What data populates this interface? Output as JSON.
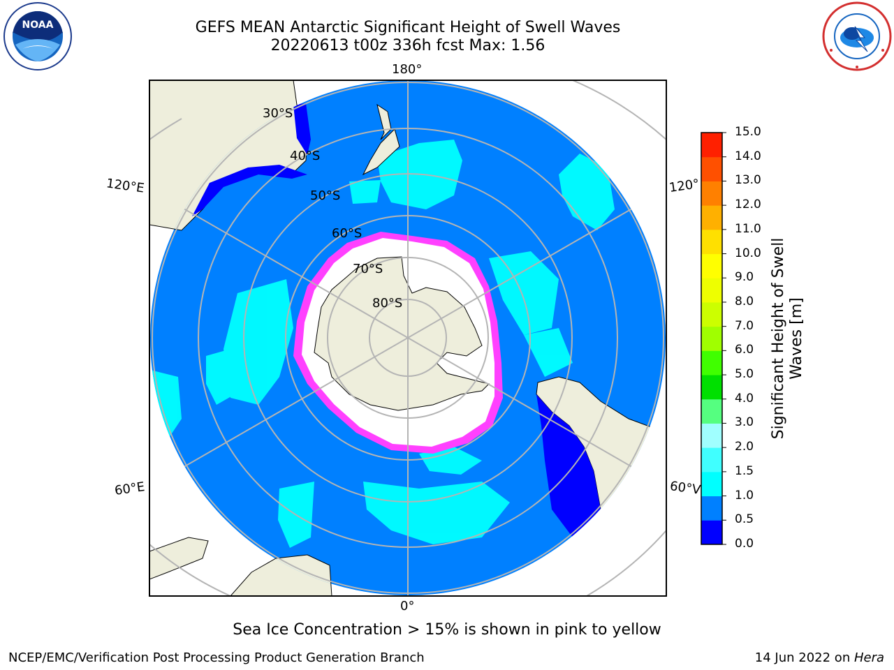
{
  "header": {
    "title_line1": "GEFS MEAN Antarctic Significant Height of Swell Waves",
    "title_line2": "20220613 t00z 336h fcst   Max: 1.56"
  },
  "logos": {
    "noaa": {
      "text": "NOAA",
      "ring_text": "NATIONAL OCEANIC AND ATMOSPHERIC ADMINISTRATION · U.S. DEPARTMENT OF COMMERCE"
    },
    "nws": {
      "ring_text": "NATIONAL WEATHER SERVICE"
    }
  },
  "map": {
    "projection": "south-polar-stereographic",
    "longitude_labels": {
      "top": "180°",
      "bottom": "0°",
      "left_upper": "120°E",
      "left_lower": "60°E",
      "right_upper": "120°",
      "right_lower": "60°V"
    },
    "latitude_labels": [
      "30°S",
      "40°S",
      "50°S",
      "60°S",
      "70°S",
      "80°S"
    ],
    "colors": {
      "ocean_base": "#0080ff",
      "land": "#eeeedc",
      "ice": "#ffffff",
      "ice_edge": "#ff40ff",
      "grid": "#b4b4b4",
      "low_swell": "#0000ff",
      "mid_swell": "#00ffff"
    }
  },
  "colorbar": {
    "label_line1": "Significant Height of Swell",
    "label_line2": "Waves [m]",
    "ticks": [
      "0.0",
      "0.5",
      "1.0",
      "1.5",
      "2.0",
      "3.0",
      "4.0",
      "5.0",
      "6.0",
      "7.0",
      "8.0",
      "9.0",
      "10.0",
      "11.0",
      "12.0",
      "13.0",
      "14.0",
      "15.0"
    ],
    "colors": [
      "#0000ff",
      "#0080ff",
      "#00ffff",
      "#40ffff",
      "#a0ffff",
      "#55ff80",
      "#00e000",
      "#40ff00",
      "#a0ff00",
      "#ccff00",
      "#eeff00",
      "#ffff00",
      "#ffe000",
      "#ffb000",
      "#ff8000",
      "#ff5000",
      "#ff2000",
      "#ff0000"
    ]
  },
  "footer": {
    "note": "Sea Ice Concentration > 15% is shown in pink to yellow",
    "left": "NCEP/EMC/Verification Post Processing Product Generation Branch",
    "right_prefix": "14 Jun 2022 on ",
    "right_host": "Hera"
  }
}
